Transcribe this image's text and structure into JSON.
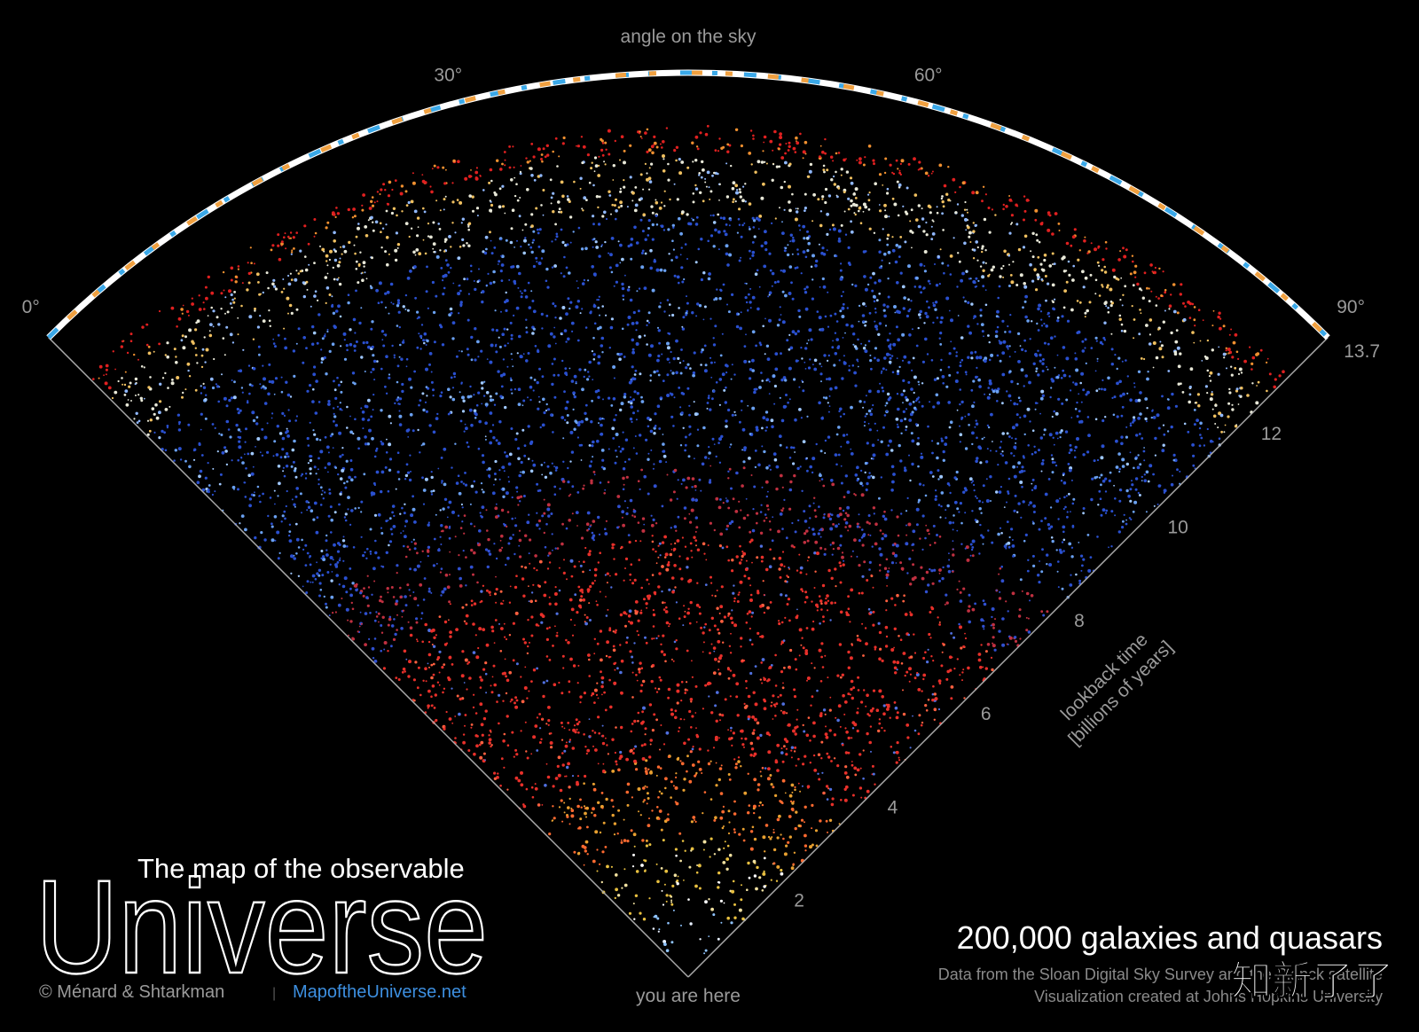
{
  "angle_axis": {
    "label": "angle on the sky",
    "lim": [
      0,
      90
    ],
    "ticks": [
      {
        "value": 0,
        "label": "0°"
      },
      {
        "value": 30,
        "label": "30°"
      },
      {
        "value": 60,
        "label": "60°"
      },
      {
        "value": 90,
        "label": "90°"
      }
    ]
  },
  "lookback_axis": {
    "label_lines": [
      "lookback time",
      "[billions of years]"
    ],
    "lim": [
      0,
      13.7
    ],
    "ticks": [
      2,
      4,
      6,
      8,
      10,
      12,
      13.7
    ]
  },
  "origin_label": "you are here",
  "title": {
    "line1": "The map of the observable",
    "line2": "Universe"
  },
  "credit": {
    "authors": "© Ménard & Shtarkman",
    "separator": "|",
    "site": "MapoftheUniverse.net"
  },
  "caption": {
    "headline": "200,000 galaxies and quasars",
    "line1": "Data from the Sloan Digital Sky Survey and the Planck satellite",
    "line2": "Visualization created at Johns Hopkins University"
  },
  "watermark": "知新了了"
}
